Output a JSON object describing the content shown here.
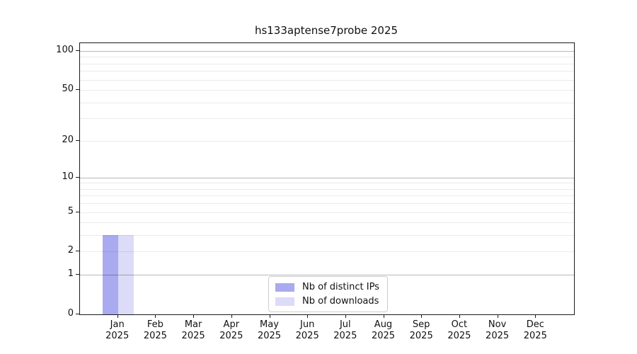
{
  "figure": {
    "background": "#ffffff"
  },
  "chart_data": {
    "type": "bar",
    "title": "hs133aptense7probe 2025",
    "categories": [
      "Jan 2025",
      "Feb 2025",
      "Mar 2025",
      "Apr 2025",
      "May 2025",
      "Jun 2025",
      "Jul 2025",
      "Aug 2025",
      "Sep 2025",
      "Oct 2025",
      "Nov 2025",
      "Dec 2025"
    ],
    "x_tick_months": [
      "Jan",
      "Feb",
      "Mar",
      "Apr",
      "May",
      "Jun",
      "Jul",
      "Aug",
      "Sep",
      "Oct",
      "Nov",
      "Dec"
    ],
    "x_tick_year": "2025",
    "series": [
      {
        "name": "Nb of distinct IPs",
        "color": "#aaaaf0",
        "values": [
          3,
          0,
          0,
          0,
          0,
          0,
          0,
          0,
          0,
          0,
          0,
          0
        ]
      },
      {
        "name": "Nb of downloads",
        "color": "#dcdcf8",
        "values": [
          3,
          0,
          0,
          0,
          0,
          0,
          0,
          0,
          0,
          0,
          0,
          0
        ]
      }
    ],
    "xlabel": "",
    "ylabel": "",
    "y_axis": {
      "scale": "log1p",
      "ticks": [
        0,
        1,
        2,
        5,
        10,
        20,
        50,
        100
      ],
      "major_gridlines": [
        1,
        10,
        100
      ],
      "minor_gridlines": [
        2,
        3,
        4,
        5,
        6,
        7,
        8,
        9,
        20,
        30,
        40,
        50,
        60,
        70,
        80,
        90
      ],
      "ylim": [
        0,
        115
      ]
    },
    "grid": "on",
    "legend_position": "lower center (inside plot)"
  },
  "colors": {
    "major_grid": "rgba(0,0,0,0.28)",
    "minor_grid": "rgba(0,0,0,0.08)",
    "axis": "#1a1a1a",
    "text": "#111111"
  }
}
